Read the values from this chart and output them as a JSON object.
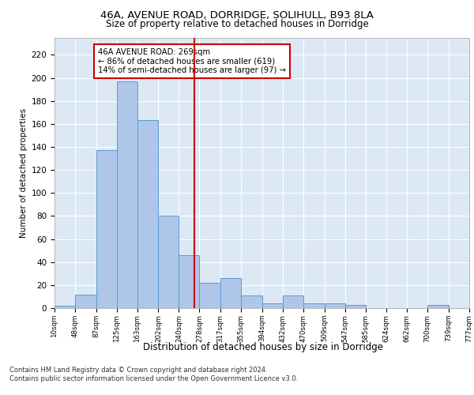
{
  "title1": "46A, AVENUE ROAD, DORRIDGE, SOLIHULL, B93 8LA",
  "title2": "Size of property relative to detached houses in Dorridge",
  "xlabel": "Distribution of detached houses by size in Dorridge",
  "ylabel": "Number of detached properties",
  "bin_edges": [
    10,
    48,
    87,
    125,
    163,
    202,
    240,
    278,
    317,
    355,
    394,
    432,
    470,
    509,
    547,
    585,
    624,
    662,
    700,
    739,
    777
  ],
  "bar_heights": [
    2,
    12,
    137,
    197,
    163,
    80,
    46,
    22,
    26,
    11,
    4,
    11,
    4,
    4,
    3,
    0,
    0,
    0,
    3,
    0
  ],
  "bar_color": "#aec6e8",
  "bar_edge_color": "#5b9bd5",
  "vline_x": 269,
  "vline_color": "#cc0000",
  "annotation_text": "46A AVENUE ROAD: 269sqm\n← 86% of detached houses are smaller (619)\n14% of semi-detached houses are larger (97) →",
  "annotation_box_color": "#ffffff",
  "annotation_box_edge": "#cc0000",
  "ylim": [
    0,
    235
  ],
  "yticks": [
    0,
    20,
    40,
    60,
    80,
    100,
    120,
    140,
    160,
    180,
    200,
    220
  ],
  "background_color": "#dde8f5",
  "footer_line1": "Contains HM Land Registry data © Crown copyright and database right 2024.",
  "footer_line2": "Contains public sector information licensed under the Open Government Licence v3.0."
}
